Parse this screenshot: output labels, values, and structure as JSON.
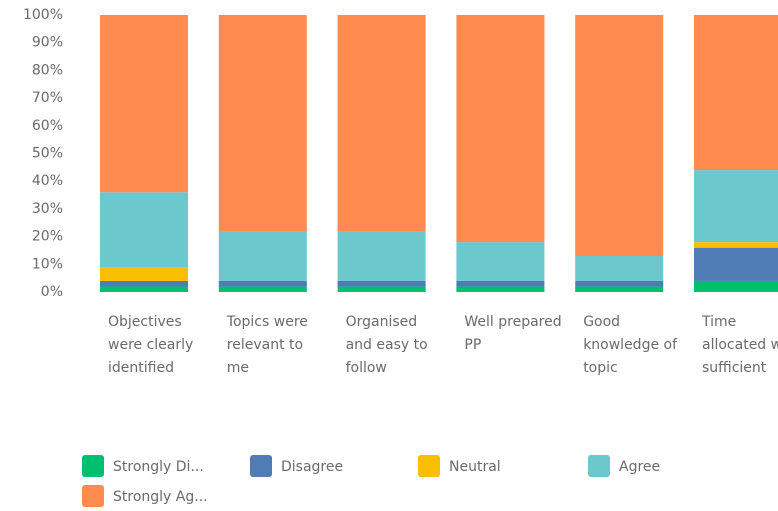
{
  "chart_data": {
    "type": "stacked_bar",
    "categories": [
      "Objectives were clearly identified",
      "Topics were relevant to me",
      "Organised and easy to follow",
      "Well prepared PP",
      "Good knowledge of topic",
      "Time allocated was sufficient"
    ],
    "series": [
      {
        "name": "Strongly Di...",
        "color": "#00bf6f",
        "values": [
          2,
          2,
          2,
          2,
          2,
          4
        ]
      },
      {
        "name": "Disagree",
        "color": "#507cb6",
        "values": [
          2,
          2,
          2,
          2,
          2,
          12
        ]
      },
      {
        "name": "Neutral",
        "color": "#f9be00",
        "values": [
          5,
          0,
          0,
          0,
          0,
          2
        ]
      },
      {
        "name": "Agree",
        "color": "#6bc8cd",
        "values": [
          27,
          18,
          18,
          14,
          9,
          26
        ]
      },
      {
        "name": "Strongly Ag...",
        "color": "#ff8b4f",
        "values": [
          64,
          78,
          78,
          82,
          87,
          56
        ]
      }
    ],
    "ylim": [
      0,
      100
    ],
    "yticks": [
      {
        "value": 0,
        "label": "0%"
      },
      {
        "value": 10,
        "label": "10%"
      },
      {
        "value": 20,
        "label": "20%"
      },
      {
        "value": 30,
        "label": "30%"
      },
      {
        "value": 40,
        "label": "40%"
      },
      {
        "value": 50,
        "label": "50%"
      },
      {
        "value": 60,
        "label": "60%"
      },
      {
        "value": 70,
        "label": "70%"
      },
      {
        "value": 80,
        "label": "80%"
      },
      {
        "value": 90,
        "label": "90%"
      },
      {
        "value": 100,
        "label": "100%"
      }
    ],
    "legend": "bottom"
  }
}
